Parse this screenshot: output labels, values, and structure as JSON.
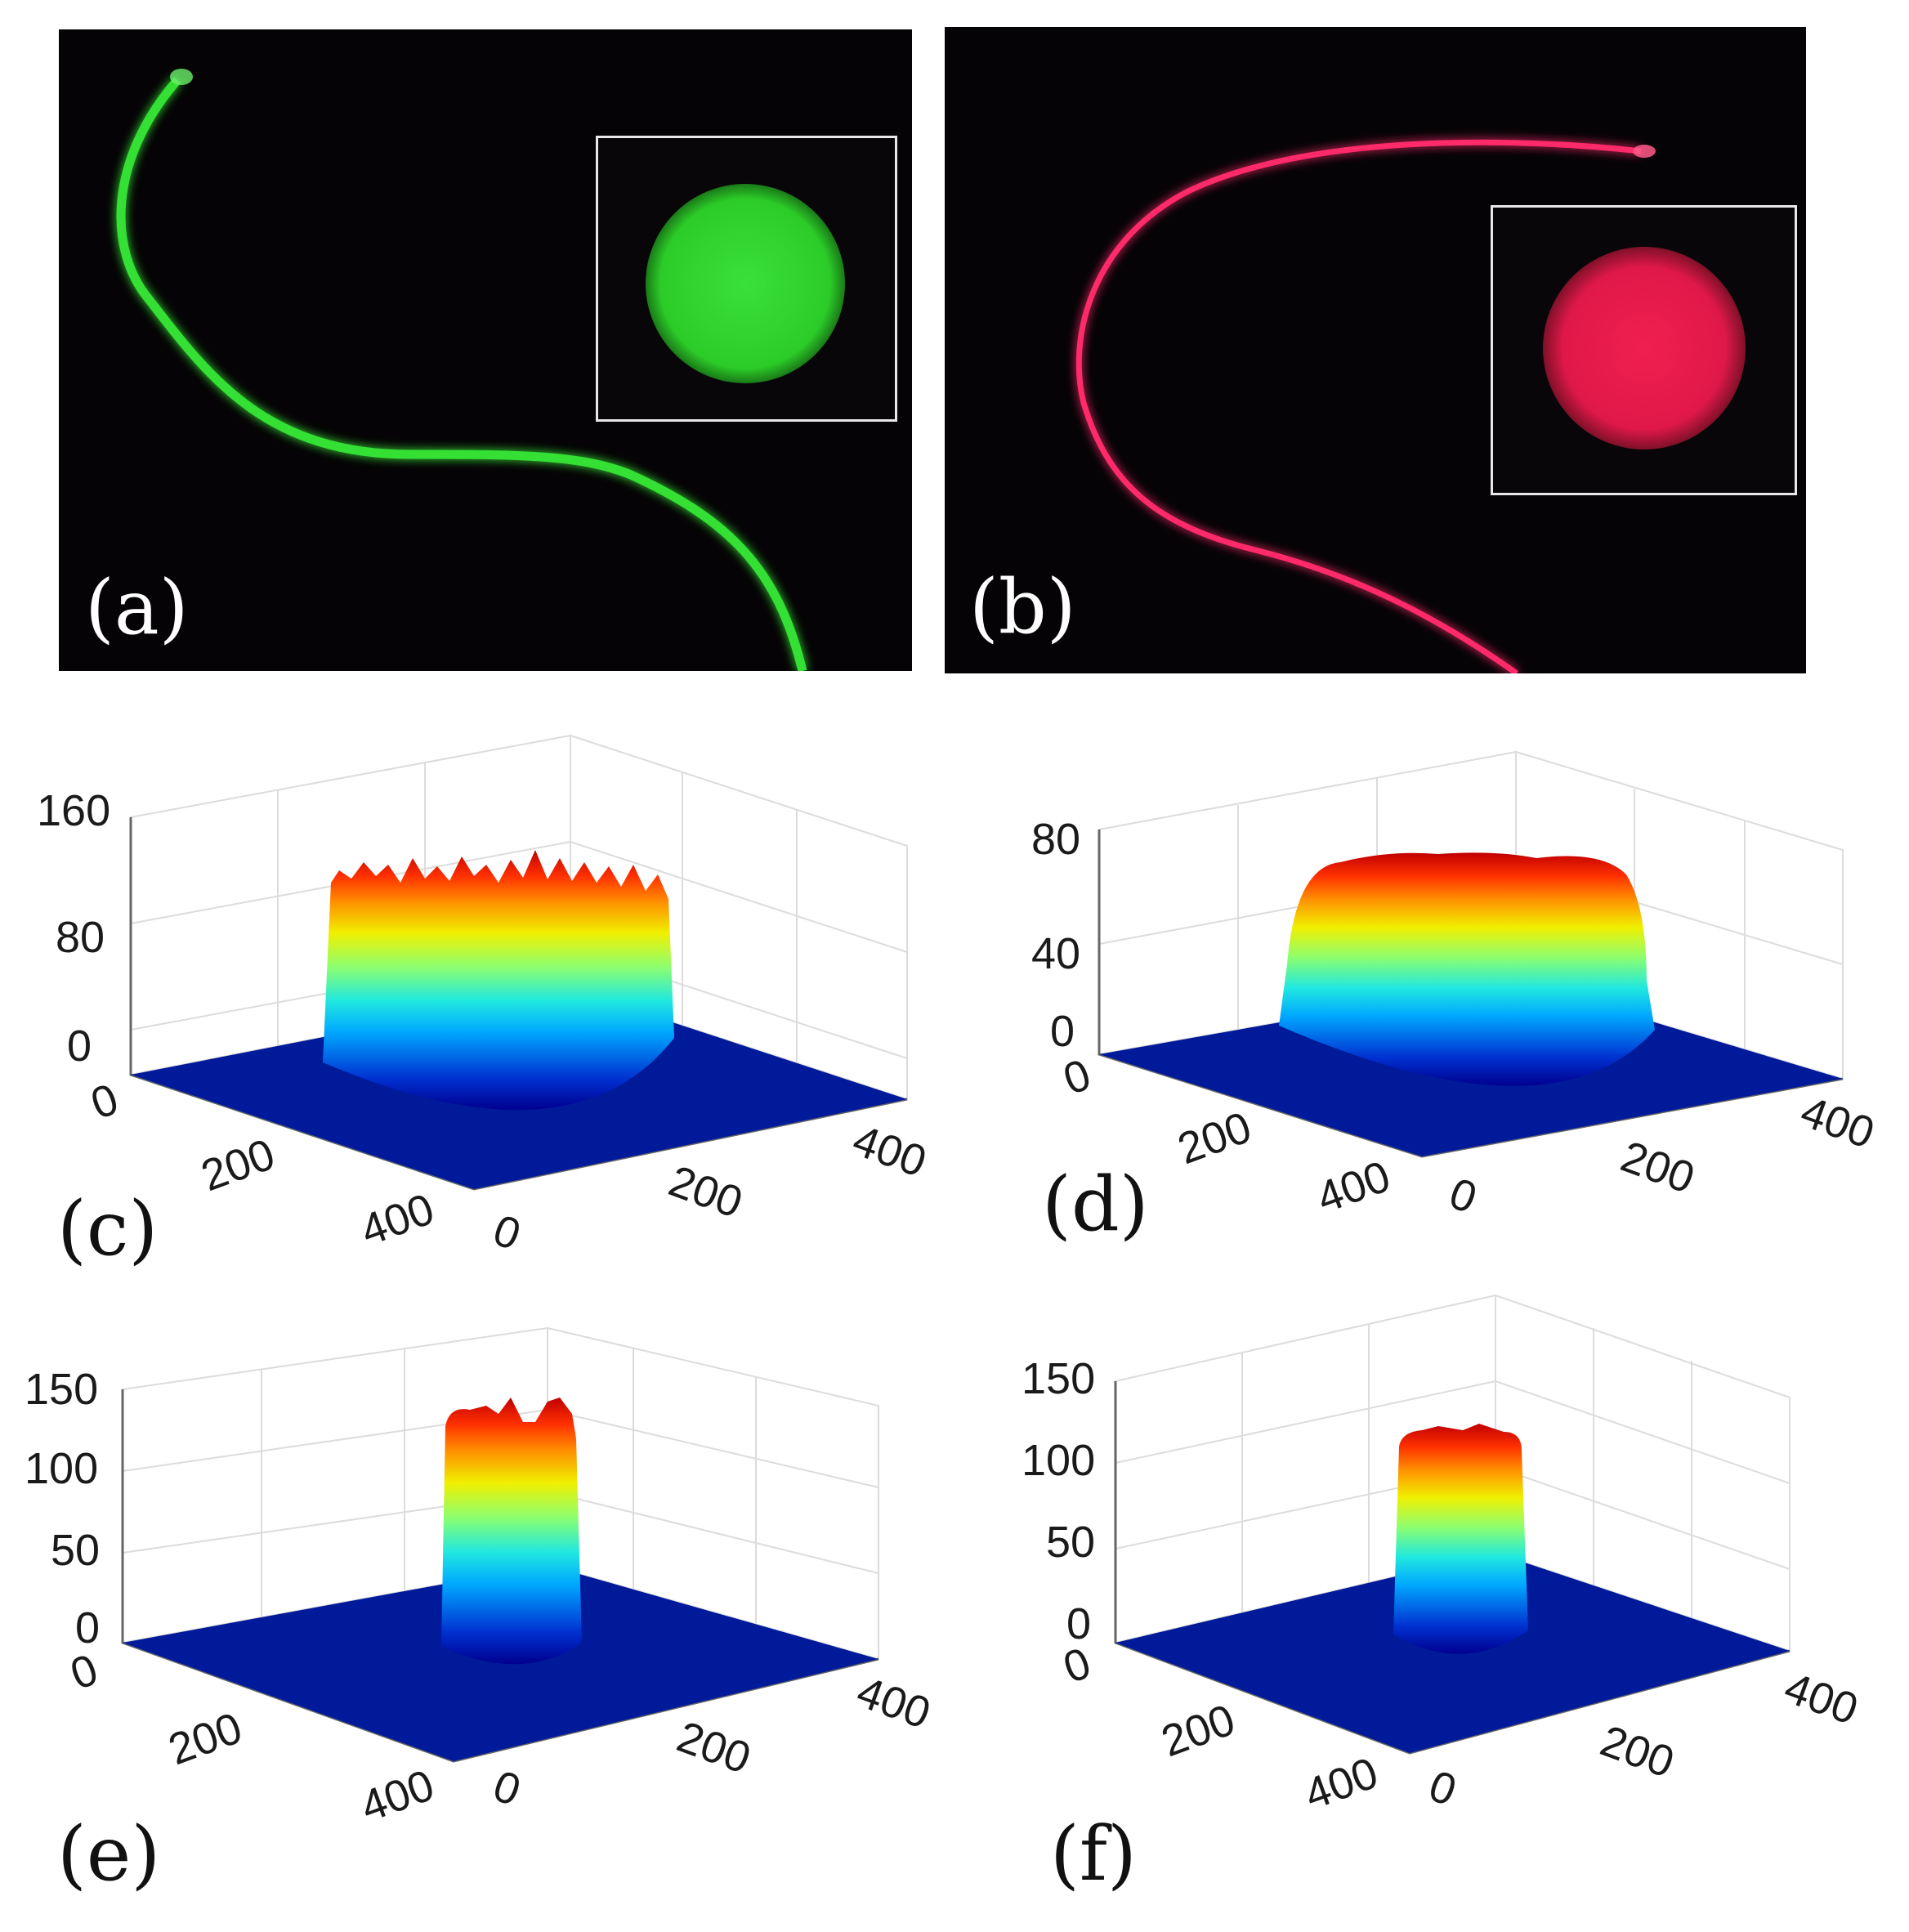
{
  "figure": {
    "panels": {
      "a": {
        "label": "(a)",
        "fiber_color": "#36e036",
        "spot_color": "#2ed02a"
      },
      "b": {
        "label": "(b)",
        "fiber_color": "#ff2a6a",
        "spot_color": "#e8184a"
      },
      "c": {
        "label": "(c)"
      },
      "d": {
        "label": "(d)"
      },
      "e": {
        "label": "(e)"
      },
      "f": {
        "label": "(f)"
      }
    }
  },
  "chart_data": [
    {
      "panel": "c",
      "type": "surface",
      "z_ticks": [
        "160",
        "80",
        "0"
      ],
      "zlim": [
        0,
        160
      ],
      "x_ticks": [
        "0",
        "200",
        "400"
      ],
      "y_ticks": [
        "0",
        "200",
        "400"
      ],
      "peak": 140,
      "profile": "flat-top",
      "noise": "high"
    },
    {
      "panel": "d",
      "type": "surface",
      "z_ticks": [
        "80",
        "40",
        "0"
      ],
      "zlim": [
        0,
        80
      ],
      "x_ticks": [
        "0",
        "200",
        "400"
      ],
      "y_ticks": [
        "0",
        "200",
        "400"
      ],
      "peak": 78,
      "profile": "flat-top",
      "noise": "low"
    },
    {
      "panel": "e",
      "type": "surface",
      "z_ticks": [
        "150",
        "100",
        "50",
        "0"
      ],
      "zlim": [
        0,
        150
      ],
      "x_ticks": [
        "0",
        "200",
        "400"
      ],
      "y_ticks": [
        "0",
        "200",
        "400"
      ],
      "peak": 140,
      "profile": "flat-top",
      "noise": "medium"
    },
    {
      "panel": "f",
      "type": "surface",
      "z_ticks": [
        "150",
        "100",
        "50",
        "0"
      ],
      "zlim": [
        0,
        150
      ],
      "x_ticks": [
        "0",
        "200",
        "400"
      ],
      "y_ticks": [
        "0",
        "200",
        "400"
      ],
      "peak": 118,
      "profile": "flat-top",
      "noise": "low"
    }
  ]
}
